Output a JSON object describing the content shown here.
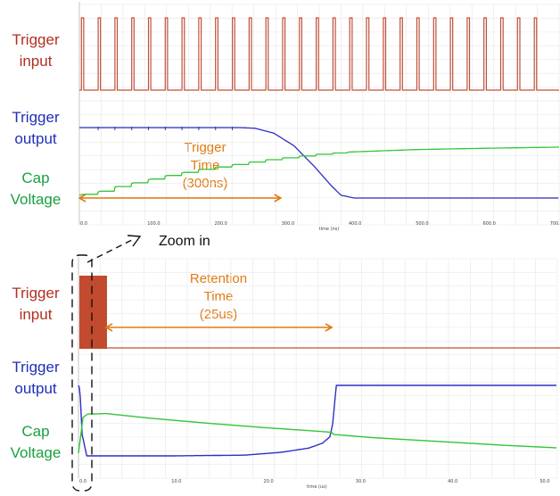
{
  "labels": {
    "top": {
      "trigger_input": [
        "Trigger",
        "input"
      ],
      "trigger_output": [
        "Trigger",
        "output"
      ],
      "cap_voltage": [
        "Cap",
        "Voltage"
      ],
      "annotation": [
        "Trigger",
        "Time",
        "(300ns)"
      ]
    },
    "bottom": {
      "trigger_input": [
        "Trigger",
        "input"
      ],
      "trigger_output": [
        "Trigger",
        "output"
      ],
      "cap_voltage": [
        "Cap",
        "Voltage"
      ],
      "annotation": [
        "Retention",
        "Time",
        "(25us)"
      ]
    },
    "zoom": "Zoom in"
  },
  "colors": {
    "trigger_input": "#c0503a",
    "trigger_output": "#2d2fc4",
    "cap_voltage": "#35c43a",
    "annotation": "#e07a12",
    "grid": "#e6e6e6"
  },
  "chart_data": [
    {
      "type": "line",
      "xlabel": "time (ns)",
      "x_ticks": [
        "0.0",
        "100.0",
        "200.0",
        "300.0",
        "400.0",
        "500.0",
        "600.0",
        "700.0"
      ],
      "xlim": [
        0,
        715
      ],
      "annotation": {
        "from": 0,
        "to": 300,
        "text": "Trigger Time (300ns)"
      },
      "series": [
        {
          "name": "Trigger input",
          "pulse_period_ns": 25,
          "pulse_width_ns": 3.5,
          "count": 28
        },
        {
          "name": "Trigger output",
          "x": [
            0,
            240,
            262,
            290,
            320,
            350,
            375,
            390,
            410,
            715
          ],
          "y": [
            1.0,
            1.0,
            0.99,
            0.92,
            0.74,
            0.45,
            0.18,
            0.04,
            0.0,
            0.0
          ]
        },
        {
          "name": "Cap Voltage",
          "x": [
            0,
            25,
            50,
            75,
            100,
            125,
            150,
            175,
            200,
            225,
            250,
            275,
            300,
            325,
            350,
            375,
            400,
            500,
            600,
            715
          ],
          "y": [
            0.05,
            0.09,
            0.17,
            0.23,
            0.29,
            0.35,
            0.4,
            0.45,
            0.49,
            0.53,
            0.57,
            0.61,
            0.64,
            0.67,
            0.7,
            0.72,
            0.74,
            0.78,
            0.8,
            0.82
          ]
        }
      ]
    },
    {
      "type": "line",
      "xlabel": "time (us)",
      "x_ticks": [
        "0.0",
        "10.0",
        "20.0",
        "30.0",
        "40.0",
        "50.0"
      ],
      "xlim": [
        0,
        52
      ],
      "annotation": {
        "from": 3,
        "to": 27.5,
        "text": "Retention Time (25us)"
      },
      "series": [
        {
          "name": "Trigger input",
          "pulse_start_us": 0,
          "pulse_end_us": 3.0
        },
        {
          "name": "Trigger output",
          "x": [
            0,
            0.15,
            0.4,
            0.9,
            10,
            18,
            22,
            25,
            26.5,
            27.3,
            27.6,
            28,
            52
          ],
          "y": [
            1.0,
            0.95,
            0.3,
            0.0,
            0.0,
            0.01,
            0.05,
            0.11,
            0.18,
            0.27,
            0.45,
            1.0,
            1.0
          ]
        },
        {
          "name": "Cap Voltage",
          "x": [
            0,
            0.5,
            1,
            3,
            8,
            14,
            20,
            26,
            27.5,
            27.7,
            32,
            40,
            46,
            52
          ],
          "y": [
            0.05,
            0.72,
            0.78,
            0.79,
            0.7,
            0.61,
            0.53,
            0.46,
            0.44,
            0.4,
            0.34,
            0.26,
            0.2,
            0.15
          ]
        }
      ]
    }
  ]
}
